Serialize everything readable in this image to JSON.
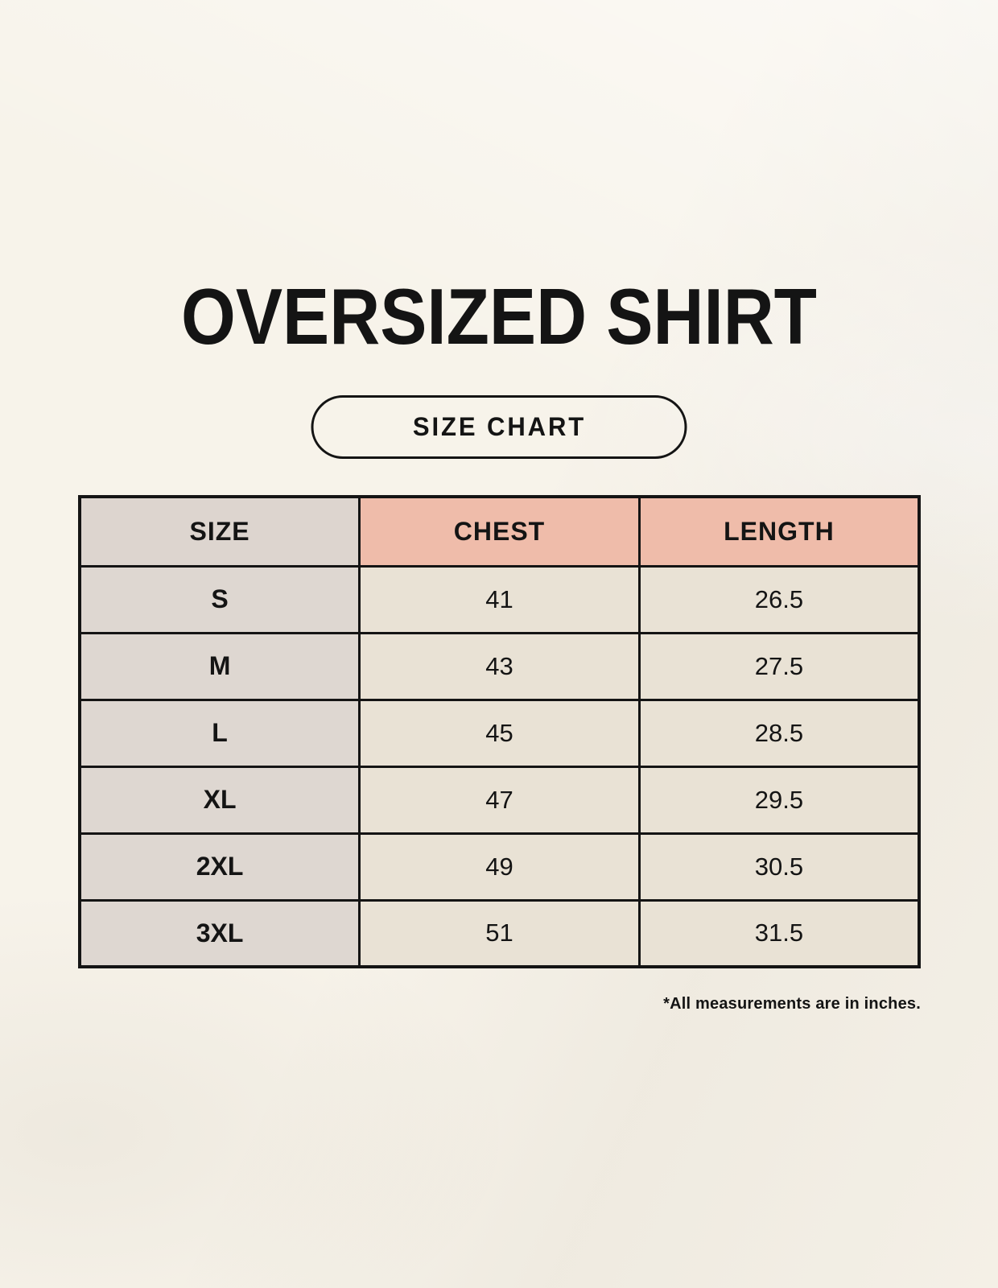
{
  "page": {
    "title": "OVERSIZED SHIRT",
    "badge_label": "SIZE CHART",
    "footnote": "*All measurements are in inches."
  },
  "chart_data": {
    "type": "table",
    "title": "OVERSIZED SHIRT size chart",
    "units": "inches",
    "columns": [
      "SIZE",
      "CHEST",
      "LENGTH"
    ],
    "rows": [
      [
        "S",
        "41",
        "26.5"
      ],
      [
        "M",
        "43",
        "27.5"
      ],
      [
        "L",
        "45",
        "28.5"
      ],
      [
        "XL",
        "47",
        "29.5"
      ],
      [
        "2XL",
        "49",
        "30.5"
      ],
      [
        "3XL",
        "51",
        "31.5"
      ]
    ]
  },
  "colors": {
    "background": "#f7f3ea",
    "header_size_bg": "#ddd5cf",
    "header_measure_bg": "#efbcaa",
    "cell_size_bg": "#ded7d1",
    "cell_measure_bg": "#e9e2d5",
    "border": "#141414",
    "text": "#141414"
  }
}
